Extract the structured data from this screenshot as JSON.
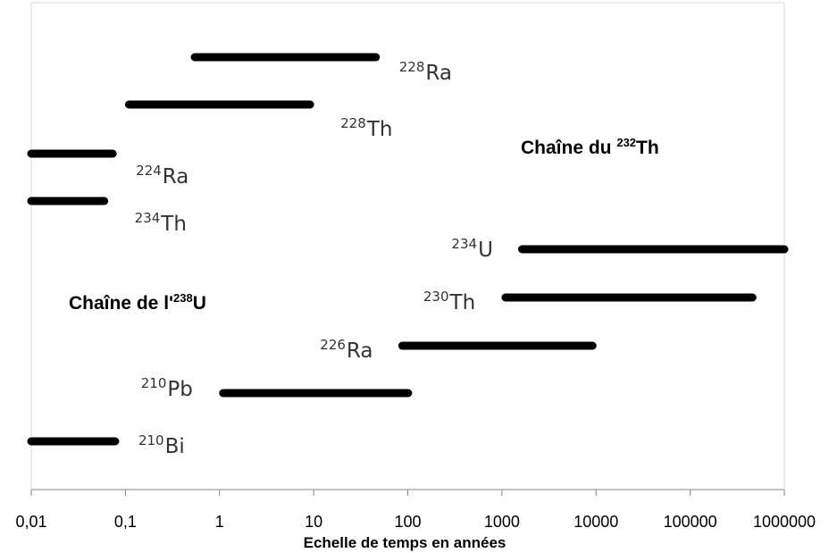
{
  "chart_data": {
    "type": "range-bar",
    "x_scale": "log",
    "xlim": [
      0.01,
      1000000
    ],
    "xlabel": "Echelle de temps en années",
    "x_ticks": [
      "0,01",
      "0,1",
      "1",
      "10",
      "100",
      "1000",
      "10000",
      "100000",
      "1000000"
    ],
    "grid": false,
    "series": [
      {
        "mass": "228",
        "element": "Ra",
        "start": 0.5,
        "end": 50
      },
      {
        "mass": "228",
        "element": "Th",
        "start": 0.1,
        "end": 10
      },
      {
        "mass": "224",
        "element": "Ra",
        "start": 0.01,
        "end": 0.08
      },
      {
        "mass": "234",
        "element": "Th",
        "start": 0.01,
        "end": 0.065
      },
      {
        "mass": "234",
        "element": "U",
        "start": 1500,
        "end": 1000000
      },
      {
        "mass": "230",
        "element": "Th",
        "start": 1000,
        "end": 500000
      },
      {
        "mass": "226",
        "element": "Ra",
        "start": 80,
        "end": 10000
      },
      {
        "mass": "210",
        "element": "Pb",
        "start": 1,
        "end": 110
      },
      {
        "mass": "210",
        "element": "Bi",
        "start": 0.01,
        "end": 0.085
      }
    ],
    "annotations": [
      {
        "prefix": "Chaîne du ",
        "sup": "232",
        "suffix": "Th"
      },
      {
        "prefix": "Chaîne de l'",
        "sup": "238",
        "suffix": "U"
      }
    ]
  }
}
